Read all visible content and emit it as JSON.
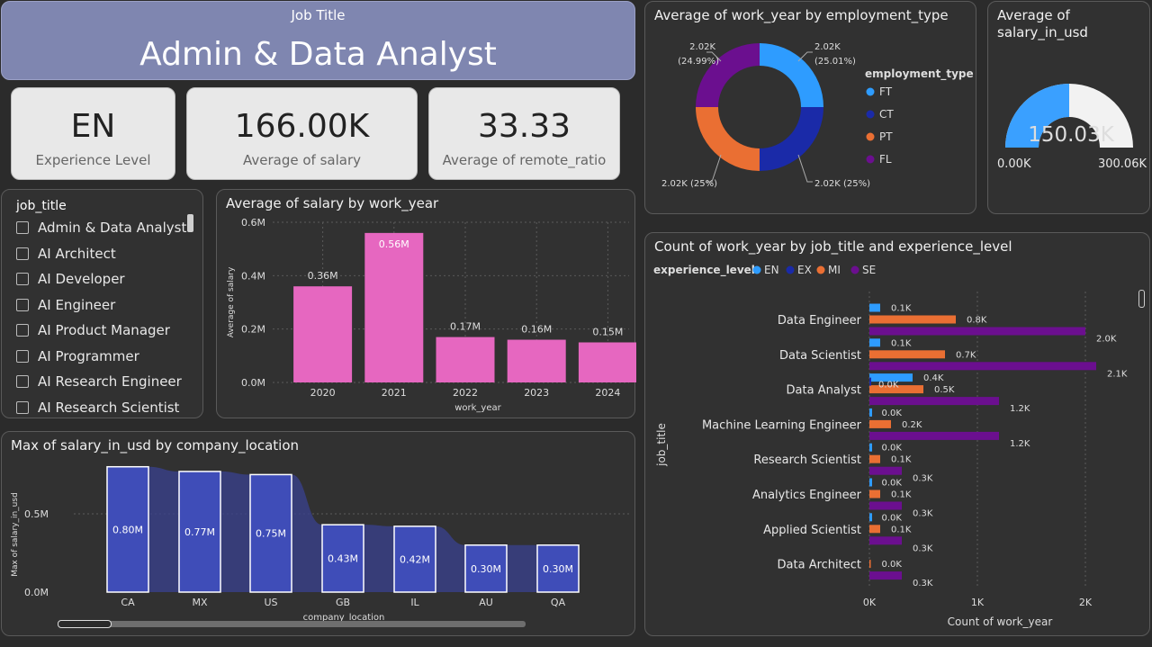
{
  "job_title_card": {
    "label": "Job Title",
    "value": "Admin & Data Analyst"
  },
  "kpis": [
    {
      "value": "EN",
      "label": "Experience Level"
    },
    {
      "value": "166.00K",
      "label": "Average of salary"
    },
    {
      "value": "33.33",
      "label": "Average of remote_ratio"
    }
  ],
  "slicer": {
    "header": "job_title",
    "items": [
      "Admin & Data Analyst",
      "AI Architect",
      "AI Developer",
      "AI Engineer",
      "AI Product Manager",
      "AI Programmer",
      "AI Research Engineer",
      "AI Research Scientist"
    ]
  },
  "donut": {
    "title": "Average of work_year by employment_type",
    "legend_title": "employment_type",
    "legend": [
      "FT",
      "CT",
      "PT",
      "FL"
    ],
    "colors": [
      "#2e9cff",
      "#1a2aa8",
      "#ea6f33",
      "#6b0f8f"
    ],
    "labels": [
      "2.02K\n(25.01%)",
      "2.02K (25%)",
      "2.02K (25%)",
      "2.02K\n(24.99%)"
    ]
  },
  "gauge": {
    "title_line1": "Average of",
    "title_line2": "salary_in_usd",
    "value": "150.03K",
    "min": "0.00K",
    "max": "300.06K"
  },
  "salary_by_year": {
    "title": "Average of salary by work_year",
    "xlabel": "work_year",
    "ylabel": "Average of salary",
    "yticks": [
      "0.6M",
      "0.4M",
      "0.2M",
      "0.0M"
    ]
  },
  "salary_by_location": {
    "title": "Max of salary_in_usd by company_location",
    "xlabel": "company_location",
    "ylabel": "Max of salary_in_usd",
    "yticks": [
      "0.5M",
      "0.0M"
    ]
  },
  "count_by_title": {
    "title": "Count of work_year by job_title and experience_level",
    "legend_title": "experience_level",
    "legend": [
      "EN",
      "EX",
      "MI",
      "SE"
    ],
    "xlabel": "Count of work_year",
    "ylabel": "job_title",
    "xticks": [
      "0K",
      "1K",
      "2K"
    ]
  },
  "chart_data": [
    {
      "type": "bar",
      "title": "Average of salary by work_year",
      "categories": [
        "2020",
        "2021",
        "2022",
        "2023",
        "2024"
      ],
      "values": [
        0.36,
        0.56,
        0.17,
        0.16,
        0.15
      ],
      "labels": [
        "0.36M",
        "0.56M",
        "0.17M",
        "0.16M",
        "0.15M"
      ],
      "ylim": [
        0,
        0.6
      ],
      "color": "#e667c0"
    },
    {
      "type": "bar",
      "title": "Max of salary_in_usd by company_location",
      "categories": [
        "CA",
        "MX",
        "US",
        "GB",
        "IL",
        "AU",
        "QA"
      ],
      "values": [
        0.8,
        0.77,
        0.75,
        0.43,
        0.42,
        0.3,
        0.3
      ],
      "labels": [
        "0.80M",
        "0.77M",
        "0.75M",
        "0.43M",
        "0.42M",
        "0.30M",
        "0.30M"
      ],
      "ylim": [
        0,
        0.85
      ],
      "color": "#3f4db8"
    },
    {
      "type": "pie",
      "title": "Average of work_year by employment_type",
      "categories": [
        "FT",
        "CT",
        "PT",
        "FL"
      ],
      "values": [
        25.01,
        25,
        25,
        24.99
      ]
    },
    {
      "type": "bar",
      "title": "Count of work_year by job_title and experience_level",
      "categories": [
        "Data Engineer",
        "Data Scientist",
        "Data Analyst",
        "Machine Learning Engineer",
        "Research Scientist",
        "Analytics Engineer",
        "Applied Scientist",
        "Data Architect"
      ],
      "series": [
        {
          "name": "EN",
          "values": [
            0.1,
            0.1,
            0.4,
            0.0,
            0.0,
            0.0,
            0.0,
            null
          ],
          "labels": [
            "0.1K",
            "0.1K",
            "0.4K",
            "0.0K",
            "0.0K",
            "0.0K",
            "0.0K",
            ""
          ]
        },
        {
          "name": "EX",
          "values": [
            null,
            null,
            0.0,
            null,
            null,
            null,
            null,
            null
          ],
          "labels": [
            "",
            "",
            "0.0K",
            "",
            "",
            "",
            "",
            ""
          ]
        },
        {
          "name": "MI",
          "values": [
            0.8,
            0.7,
            0.5,
            0.2,
            0.1,
            0.1,
            0.1,
            0.0
          ],
          "labels": [
            "0.8K",
            "0.7K",
            "0.5K",
            "0.2K",
            "0.1K",
            "0.1K",
            "0.1K",
            "0.0K"
          ]
        },
        {
          "name": "SE",
          "values": [
            2.0,
            2.1,
            1.2,
            1.2,
            0.3,
            0.3,
            0.3,
            0.3
          ],
          "labels": [
            "2.0K",
            "2.1K",
            "1.2K",
            "1.2K",
            "0.3K",
            "0.3K",
            "0.3K",
            "0.3K"
          ]
        }
      ],
      "colors": [
        "#2e9cff",
        "#1a2aa8",
        "#ea6f33",
        "#6b0f8f"
      ],
      "xlim": [
        0,
        2.3
      ]
    }
  ]
}
